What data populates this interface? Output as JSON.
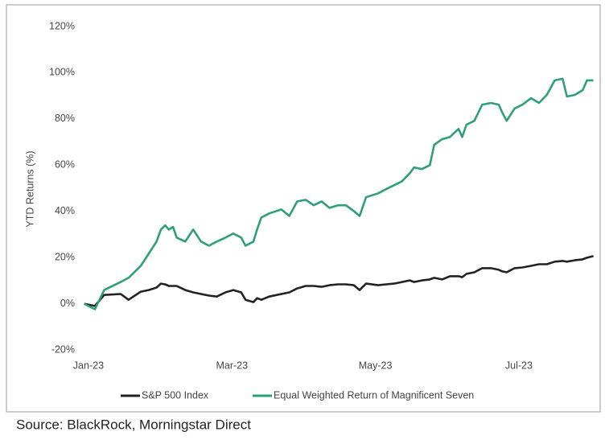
{
  "chart_data": {
    "type": "line",
    "y_label": "YTD Returns (%)",
    "source": "Source: BlackRock, Morningstar Direct",
    "x": [
      -0.06,
      0.09,
      0.22,
      0.45,
      0.56,
      0.73,
      0.84,
      0.95,
      1.01,
      1.07,
      1.12,
      1.18,
      1.23,
      1.35,
      1.46,
      1.57,
      1.68,
      1.79,
      1.91,
      2.02,
      2.13,
      2.19,
      2.3,
      2.35,
      2.41,
      2.52,
      2.69,
      2.8,
      2.91,
      3.03,
      3.14,
      3.25,
      3.36,
      3.48,
      3.59,
      3.7,
      3.78,
      3.87,
      4.04,
      4.15,
      4.26,
      4.37,
      4.48,
      4.54,
      4.65,
      4.76,
      4.82,
      4.93,
      5.04,
      5.16,
      5.21,
      5.27,
      5.38,
      5.49,
      5.61,
      5.72,
      5.77,
      5.83,
      5.94,
      6.05,
      6.17,
      6.28,
      6.39,
      6.5,
      6.61,
      6.67,
      6.78,
      6.89,
      6.95,
      7.04
    ],
    "series": [
      {
        "name": "S&P 500 Index",
        "color": "#222222",
        "values": [
          0,
          -1,
          3.8,
          4.2,
          1.7,
          5.2,
          5.9,
          7.0,
          8.7,
          8.4,
          7.7,
          7.7,
          7.7,
          5.9,
          4.9,
          4.2,
          3.5,
          3.1,
          4.9,
          5.9,
          4.9,
          1.7,
          0.7,
          2.4,
          1.7,
          3.1,
          4.2,
          4.9,
          6.6,
          7.7,
          7.7,
          7.3,
          8.0,
          8.4,
          8.4,
          8.0,
          5.9,
          8.7,
          8.0,
          8.4,
          8.7,
          9.4,
          10.1,
          9.4,
          10.1,
          10.5,
          11.2,
          10.5,
          11.9,
          11.9,
          11.5,
          12.9,
          13.6,
          15.4,
          15.4,
          14.7,
          14.0,
          13.6,
          15.4,
          15.7,
          16.4,
          17.1,
          17.1,
          18.2,
          18.5,
          18.2,
          18.8,
          19.2,
          19.9,
          20.6
        ]
      },
      {
        "name": "Equal Weighted Return of Magnificent Seven",
        "color": "#2e9e7b",
        "values": [
          0,
          -2.4,
          5.9,
          9.4,
          11.2,
          16.4,
          21.6,
          26.9,
          32.1,
          33.9,
          32.1,
          33.2,
          28.6,
          26.9,
          32.1,
          26.9,
          25.1,
          26.9,
          28.6,
          30.4,
          28.6,
          25.1,
          26.9,
          32.1,
          37.3,
          39.1,
          40.8,
          38.0,
          44.3,
          45.0,
          42.6,
          44.3,
          41.5,
          42.6,
          42.6,
          40.1,
          38.0,
          46.1,
          47.8,
          49.6,
          51.3,
          53.0,
          56.5,
          59.0,
          58.3,
          60.0,
          68.8,
          71.2,
          72.2,
          75.7,
          72.2,
          77.5,
          79.2,
          86.2,
          86.9,
          86.2,
          82.7,
          79.2,
          84.5,
          86.2,
          89.0,
          86.9,
          90.4,
          96.7,
          97.4,
          89.7,
          90.4,
          92.5,
          96.7,
          96.7
        ]
      }
    ],
    "xlim": [
      -0.1,
      7.1
    ],
    "xticks": [
      {
        "value": 0,
        "label": "Jan-23"
      },
      {
        "value": 2,
        "label": "Mar-23"
      },
      {
        "value": 4,
        "label": "May-23"
      },
      {
        "value": 6,
        "label": "Jul-23"
      }
    ],
    "ylim": [
      -20,
      120
    ],
    "yticks": [
      {
        "value": -20,
        "label": "-20%"
      },
      {
        "value": 0,
        "label": "0%"
      },
      {
        "value": 20,
        "label": "20%"
      },
      {
        "value": 40,
        "label": "40%"
      },
      {
        "value": 60,
        "label": "60%"
      },
      {
        "value": 80,
        "label": "80%"
      },
      {
        "value": 100,
        "label": "100%"
      },
      {
        "value": 120,
        "label": "120%"
      }
    ],
    "grid": false,
    "legend": "bottom"
  }
}
